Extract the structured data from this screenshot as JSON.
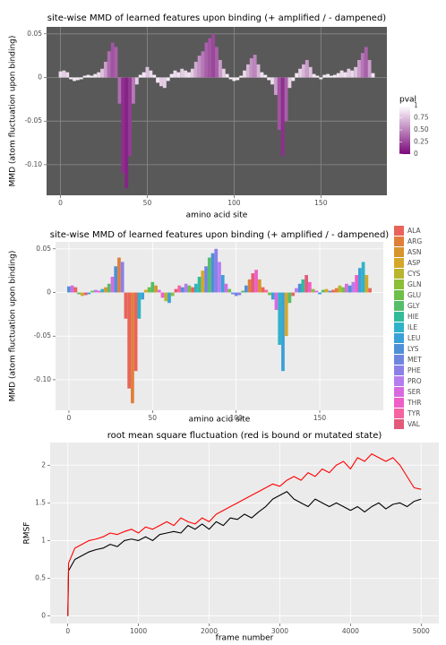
{
  "chart_data": [
    {
      "type": "bar",
      "title": "site-wise MMD of learned features upon binding (+ amplified / - dampened)",
      "xlabel": "amino acid site",
      "ylabel": "MMD (atom fluctuation upon binding)",
      "x": [
        0,
        2,
        4,
        6,
        8,
        10,
        12,
        14,
        16,
        18,
        20,
        22,
        24,
        26,
        28,
        30,
        32,
        34,
        36,
        38,
        40,
        42,
        44,
        46,
        48,
        50,
        52,
        54,
        56,
        58,
        60,
        62,
        64,
        66,
        68,
        70,
        72,
        74,
        76,
        78,
        80,
        82,
        84,
        86,
        88,
        90,
        92,
        94,
        96,
        98,
        100,
        102,
        104,
        106,
        108,
        110,
        112,
        114,
        116,
        118,
        120,
        122,
        124,
        126,
        128,
        130,
        132,
        134,
        136,
        138,
        140,
        142,
        144,
        146,
        148,
        150,
        152,
        154,
        156,
        158,
        160,
        162,
        164,
        166,
        168,
        170,
        172,
        174,
        176,
        178,
        180
      ],
      "values": [
        0.007,
        0.008,
        0.006,
        -0.002,
        -0.004,
        -0.003,
        -0.002,
        0.002,
        0.003,
        0.002,
        0.004,
        0.006,
        0.01,
        0.018,
        0.03,
        0.04,
        0.035,
        -0.03,
        -0.11,
        -0.127,
        -0.09,
        -0.03,
        -0.008,
        0.003,
        0.006,
        0.012,
        0.008,
        0.003,
        -0.006,
        -0.01,
        -0.012,
        -0.004,
        0.004,
        0.008,
        0.006,
        0.01,
        0.008,
        0.006,
        0.01,
        0.018,
        0.025,
        0.03,
        0.04,
        0.045,
        0.05,
        0.035,
        0.02,
        0.01,
        0.004,
        -0.002,
        -0.004,
        -0.003,
        0.002,
        0.008,
        0.015,
        0.022,
        0.026,
        0.015,
        0.006,
        0.003,
        -0.003,
        -0.008,
        -0.02,
        -0.06,
        -0.09,
        -0.05,
        -0.012,
        -0.004,
        0.005,
        0.01,
        0.015,
        0.02,
        0.012,
        0.004,
        0.002,
        -0.002,
        0.003,
        0.004,
        0.002,
        0.003,
        0.005,
        0.008,
        0.006,
        0.01,
        0.008,
        0.012,
        0.02,
        0.028,
        0.035,
        0.02,
        0.005
      ],
      "pval": [
        0.85,
        0.8,
        0.85,
        0.95,
        0.9,
        0.92,
        0.95,
        0.95,
        0.93,
        0.95,
        0.9,
        0.85,
        0.75,
        0.6,
        0.4,
        0.3,
        0.35,
        0.4,
        0.15,
        0.1,
        0.2,
        0.45,
        0.8,
        0.95,
        0.9,
        0.75,
        0.85,
        0.95,
        0.9,
        0.8,
        0.8,
        0.92,
        0.92,
        0.85,
        0.88,
        0.8,
        0.85,
        0.88,
        0.8,
        0.65,
        0.55,
        0.45,
        0.35,
        0.3,
        0.25,
        0.35,
        0.6,
        0.8,
        0.92,
        0.95,
        0.92,
        0.95,
        0.95,
        0.85,
        0.7,
        0.55,
        0.5,
        0.7,
        0.88,
        0.93,
        0.93,
        0.85,
        0.6,
        0.3,
        0.15,
        0.35,
        0.8,
        0.92,
        0.9,
        0.8,
        0.7,
        0.6,
        0.75,
        0.9,
        0.95,
        0.95,
        0.93,
        0.92,
        0.95,
        0.93,
        0.9,
        0.85,
        0.88,
        0.8,
        0.85,
        0.75,
        0.6,
        0.45,
        0.35,
        0.6,
        0.9
      ],
      "xlim": [
        -8,
        188
      ],
      "xticks": [
        0,
        50,
        100,
        150
      ],
      "ylim": [
        -0.135,
        0.058
      ],
      "yticks": [
        {
          "value": -0.1,
          "label": "-0.10"
        },
        -0.05,
        0,
        0.05
      ],
      "background": "#595959",
      "grid_color": "#8a8a8a",
      "colorbar": {
        "title": "pval",
        "low_color": "#7a0a7a",
        "high_color": "#ffffff",
        "ticks": [
          0,
          0.25,
          {
            "value": 0.5,
            "label": "0.50"
          },
          0.75,
          1
        ]
      }
    },
    {
      "type": "bar",
      "title": "site-wise MMD of learned features upon binding  (+ amplified / - dampened)",
      "xlabel": "amino acid site",
      "ylabel": "MMD (atom fluctuation upon binding)",
      "x": [
        0,
        2,
        4,
        6,
        8,
        10,
        12,
        14,
        16,
        18,
        20,
        22,
        24,
        26,
        28,
        30,
        32,
        34,
        36,
        38,
        40,
        42,
        44,
        46,
        48,
        50,
        52,
        54,
        56,
        58,
        60,
        62,
        64,
        66,
        68,
        70,
        72,
        74,
        76,
        78,
        80,
        82,
        84,
        86,
        88,
        90,
        92,
        94,
        96,
        98,
        100,
        102,
        104,
        106,
        108,
        110,
        112,
        114,
        116,
        118,
        120,
        122,
        124,
        126,
        128,
        130,
        132,
        134,
        136,
        138,
        140,
        142,
        144,
        146,
        148,
        150,
        152,
        154,
        156,
        158,
        160,
        162,
        164,
        166,
        168,
        170,
        172,
        174,
        176,
        178,
        180
      ],
      "values": [
        0.007,
        0.008,
        0.006,
        -0.002,
        -0.004,
        -0.003,
        -0.002,
        0.002,
        0.003,
        0.002,
        0.004,
        0.006,
        0.01,
        0.018,
        0.03,
        0.04,
        0.035,
        -0.03,
        -0.11,
        -0.127,
        -0.09,
        -0.03,
        -0.008,
        0.003,
        0.006,
        0.012,
        0.008,
        0.003,
        -0.006,
        -0.01,
        -0.012,
        -0.004,
        0.004,
        0.008,
        0.006,
        0.01,
        0.008,
        0.006,
        0.01,
        0.018,
        0.025,
        0.03,
        0.04,
        0.045,
        0.05,
        0.035,
        0.02,
        0.01,
        0.004,
        -0.002,
        -0.004,
        -0.003,
        0.002,
        0.008,
        0.015,
        0.022,
        0.026,
        0.015,
        0.006,
        0.003,
        -0.003,
        -0.008,
        -0.02,
        -0.06,
        -0.09,
        -0.05,
        -0.012,
        -0.004,
        0.005,
        0.01,
        0.015,
        0.02,
        0.012,
        0.004,
        0.002,
        -0.002,
        0.003,
        0.004,
        0.002,
        0.003,
        0.005,
        0.008,
        0.006,
        0.01,
        0.008,
        0.012,
        0.02,
        0.028,
        0.035,
        0.02,
        0.005
      ],
      "residues": [
        "LYS",
        "SER",
        "ALA",
        "GLY",
        "ASP",
        "VAL",
        "LEU",
        "GLU",
        "PRO",
        "THR",
        "ILE",
        "ASN",
        "GLY",
        "SER",
        "LYS",
        "ARG",
        "PHE",
        "ALA",
        "ALA",
        "ARG",
        "ALA",
        "ILE",
        "LEU",
        "ASP",
        "GLU",
        "GLY",
        "ASN",
        "SER",
        "THR",
        "CYS",
        "LEU",
        "GLN",
        "VAL",
        "TYR",
        "LYS",
        "PRO",
        "GLU",
        "ALA",
        "ILE",
        "HIE",
        "ASP",
        "MET",
        "GLY",
        "LYS",
        "PHE",
        "PRO",
        "LEU",
        "SER",
        "GLU",
        "MET",
        "MET",
        "PHE",
        "GLY",
        "LYS",
        "ARG",
        "VAL",
        "THR",
        "ASN",
        "ALA",
        "TYR",
        "GLU",
        "LEU",
        "SER",
        "ILE",
        "LEU",
        "ASP",
        "GLY",
        "ALA",
        "PRO",
        "LYS",
        "HIE",
        "VAL",
        "THR",
        "GLN",
        "SER",
        "LEU",
        "GLY",
        "ASP",
        "MET",
        "ALA",
        "ARG",
        "CYS",
        "GLU",
        "SER",
        "LYS",
        "PRO",
        "THR",
        "LEU",
        "ILE",
        "ASP",
        "ALA"
      ],
      "legend": {
        "labels": [
          "ALA",
          "ARG",
          "ASN",
          "ASP",
          "CYS",
          "GLN",
          "GLU",
          "GLY",
          "HIE",
          "ILE",
          "LEU",
          "LYS",
          "MET",
          "PHE",
          "PRO",
          "SER",
          "THR",
          "TYR",
          "VAL"
        ],
        "colors": [
          "#e8645a",
          "#e07f3a",
          "#d8952e",
          "#d5a82a",
          "#b8b52e",
          "#8dbe3a",
          "#6cc04a",
          "#55be6a",
          "#33bb9a",
          "#2fb3c8",
          "#3aa0d8",
          "#4f8fd8",
          "#6f86e0",
          "#8b7fe8",
          "#b67df0",
          "#d86ae0",
          "#ee5fc8",
          "#f564a0",
          "#e35a7a"
        ]
      },
      "xlim": [
        -8,
        188
      ],
      "xticks": [
        0,
        50,
        100,
        150
      ],
      "ylim": [
        -0.135,
        0.058
      ],
      "yticks": [
        {
          "value": -0.1,
          "label": "-0.10"
        },
        -0.05,
        0,
        0.05
      ],
      "background": "#ebebeb",
      "grid_color": "#ffffff"
    },
    {
      "type": "line",
      "title": "root mean square fluctuation (red is bound or mutated state)",
      "xlabel": "frame number",
      "ylabel": "RMSF",
      "x": [
        0,
        10,
        100,
        200,
        300,
        400,
        500,
        600,
        700,
        800,
        900,
        1000,
        1100,
        1200,
        1300,
        1400,
        1500,
        1600,
        1700,
        1800,
        1900,
        2000,
        2100,
        2200,
        2300,
        2400,
        2500,
        2600,
        2700,
        2800,
        2900,
        3000,
        3100,
        3200,
        3300,
        3400,
        3500,
        3600,
        3700,
        3800,
        3900,
        4000,
        4100,
        4200,
        4300,
        4400,
        4500,
        4600,
        4700,
        4800,
        4900,
        5000
      ],
      "series": [
        {
          "color": "#000000",
          "values": [
            0,
            0.6,
            0.75,
            0.8,
            0.85,
            0.88,
            0.9,
            0.95,
            0.92,
            1.0,
            1.02,
            1.0,
            1.05,
            1.0,
            1.08,
            1.1,
            1.12,
            1.1,
            1.2,
            1.15,
            1.22,
            1.15,
            1.25,
            1.2,
            1.3,
            1.28,
            1.35,
            1.3,
            1.38,
            1.45,
            1.55,
            1.6,
            1.65,
            1.55,
            1.5,
            1.45,
            1.55,
            1.5,
            1.45,
            1.5,
            1.45,
            1.4,
            1.45,
            1.38,
            1.45,
            1.5,
            1.42,
            1.48,
            1.5,
            1.45,
            1.52,
            1.55
          ]
        },
        {
          "color": "#ff0000",
          "values": [
            0,
            0.7,
            0.9,
            0.95,
            1.0,
            1.02,
            1.05,
            1.1,
            1.08,
            1.12,
            1.15,
            1.1,
            1.18,
            1.15,
            1.2,
            1.25,
            1.2,
            1.3,
            1.25,
            1.22,
            1.3,
            1.25,
            1.35,
            1.4,
            1.45,
            1.5,
            1.55,
            1.6,
            1.65,
            1.7,
            1.75,
            1.72,
            1.8,
            1.85,
            1.8,
            1.9,
            1.85,
            1.95,
            1.9,
            2.0,
            2.05,
            1.95,
            2.1,
            2.05,
            2.15,
            2.1,
            2.05,
            2.1,
            2.0,
            1.85,
            1.7,
            1.68
          ]
        }
      ],
      "xlim": [
        -250,
        5250
      ],
      "xticks": [
        0,
        1000,
        2000,
        3000,
        4000,
        5000
      ],
      "ylim": [
        -0.1,
        2.3
      ],
      "yticks": [
        0,
        0.5,
        1,
        1.5,
        2
      ],
      "background": "#ebebeb",
      "grid_color": "#ffffff"
    }
  ]
}
